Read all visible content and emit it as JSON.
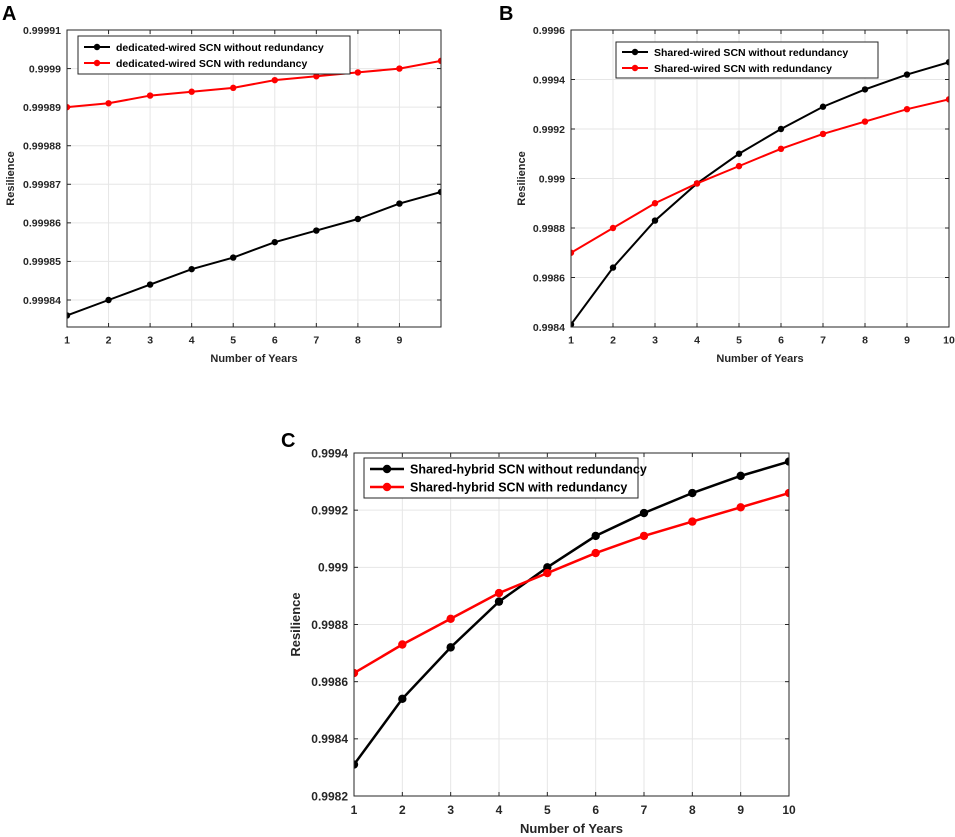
{
  "chart_data": [
    {
      "type": "line",
      "panel_label": "A",
      "title": "",
      "xlabel": "Number of Years",
      "ylabel": "Resilience",
      "xlim": [
        1,
        10
      ],
      "ylim": [
        0.999833,
        0.99991
      ],
      "grid": true,
      "legend_position": "top-left",
      "x_ticks": [
        1,
        2,
        3,
        4,
        5,
        6,
        7,
        8,
        9
      ],
      "x_tick_labels": [
        "1",
        "2",
        "3",
        "4",
        "5",
        "6",
        "7",
        "8",
        "9"
      ],
      "y_ticks": [
        0.99984,
        0.99985,
        0.99986,
        0.99987,
        0.99988,
        0.99989,
        0.9999,
        0.99991
      ],
      "y_tick_labels": [
        "0.99984",
        "0.99985",
        "0.99986",
        "0.99987",
        "0.99988",
        "0.99989",
        "0.9999",
        "0.99991"
      ],
      "x": [
        1,
        2,
        3,
        4,
        5,
        6,
        7,
        8,
        9,
        10
      ],
      "series": [
        {
          "name": "dedicated-wired SCN without redundancy",
          "color": "#000000",
          "values": [
            0.999836,
            0.99984,
            0.999844,
            0.999848,
            0.999851,
            0.999855,
            0.999858,
            0.999861,
            0.999865,
            0.999868
          ]
        },
        {
          "name": "dedicated-wired SCN with redundancy",
          "color": "#ff0000",
          "values": [
            0.99989,
            0.999891,
            0.999893,
            0.999894,
            0.999895,
            0.999897,
            0.999898,
            0.999899,
            0.9999,
            0.999902
          ]
        }
      ]
    },
    {
      "type": "line",
      "panel_label": "B",
      "title": "",
      "xlabel": "Number of Years",
      "ylabel": "Resilience",
      "xlim": [
        1,
        10
      ],
      "ylim": [
        0.9984,
        0.9996
      ],
      "grid": true,
      "legend_position": "top-right",
      "x_ticks": [
        1,
        2,
        3,
        4,
        5,
        6,
        7,
        8,
        9,
        10
      ],
      "x_tick_labels": [
        "1",
        "2",
        "3",
        "4",
        "5",
        "6",
        "7",
        "8",
        "9",
        "10"
      ],
      "y_ticks": [
        0.9984,
        0.9986,
        0.9988,
        0.999,
        0.9992,
        0.9994,
        0.9996
      ],
      "y_tick_labels": [
        "0.9984",
        "0.9986",
        "0.9988",
        "0.999",
        "0.9992",
        "0.9994",
        "0.9996"
      ],
      "x": [
        1,
        2,
        3,
        4,
        5,
        6,
        7,
        8,
        9,
        10
      ],
      "series": [
        {
          "name": "Shared-wired SCN without redundancy",
          "color": "#000000",
          "values": [
            0.99841,
            0.99864,
            0.99883,
            0.99898,
            0.9991,
            0.9992,
            0.99929,
            0.99936,
            0.99942,
            0.99947
          ]
        },
        {
          "name": "Shared-wired SCN with redundancy",
          "color": "#ff0000",
          "values": [
            0.9987,
            0.9988,
            0.9989,
            0.99898,
            0.99905,
            0.99912,
            0.99918,
            0.99923,
            0.99928,
            0.99932
          ]
        }
      ]
    },
    {
      "type": "line",
      "panel_label": "C",
      "title": "",
      "xlabel": "Number of Years",
      "ylabel": "Resilience",
      "xlim": [
        1,
        10
      ],
      "ylim": [
        0.9982,
        0.9994
      ],
      "grid": true,
      "legend_position": "top-left",
      "x_ticks": [
        1,
        2,
        3,
        4,
        5,
        6,
        7,
        8,
        9,
        10
      ],
      "x_tick_labels": [
        "1",
        "2",
        "3",
        "4",
        "5",
        "6",
        "7",
        "8",
        "9",
        "10"
      ],
      "y_ticks": [
        0.9982,
        0.9984,
        0.9986,
        0.9988,
        0.999,
        0.9992,
        0.9994
      ],
      "y_tick_labels": [
        "0.9982",
        "0.9984",
        "0.9986",
        "0.9988",
        "0.999",
        "0.9992",
        "0.9994"
      ],
      "x": [
        1,
        2,
        3,
        4,
        5,
        6,
        7,
        8,
        9,
        10
      ],
      "series": [
        {
          "name": "Shared-hybrid SCN without redundancy",
          "color": "#000000",
          "values": [
            0.99831,
            0.99854,
            0.99872,
            0.99888,
            0.999,
            0.99911,
            0.99919,
            0.99926,
            0.99932,
            0.99937
          ]
        },
        {
          "name": "Shared-hybrid SCN with redundancy",
          "color": "#ff0000",
          "values": [
            0.99863,
            0.99873,
            0.99882,
            0.99891,
            0.99898,
            0.99905,
            0.99911,
            0.99916,
            0.99921,
            0.99926
          ]
        }
      ]
    }
  ]
}
